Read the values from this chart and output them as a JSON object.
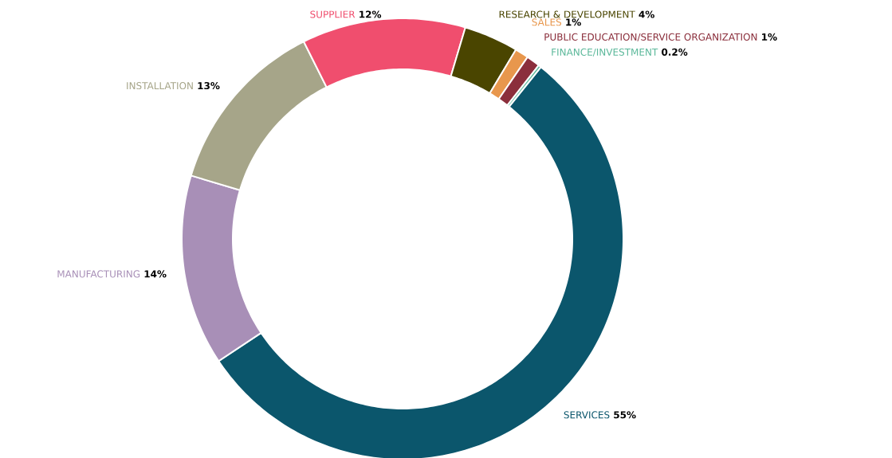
{
  "chart_data": {
    "type": "donut",
    "categories": [
      "SERVICES",
      "MANUFACTURING",
      "INSTALLATION",
      "SUPPLIER",
      "RESEARCH & DEVELOPMENT",
      "SALES",
      "PUBLIC EDUCATION/SERVICE ORGANIZATION",
      "FINANCE/INVESTMENT"
    ],
    "values": [
      55,
      14,
      13,
      12,
      4,
      1,
      1,
      0.2
    ],
    "value_labels": [
      "55%",
      "14%",
      "13%",
      "12%",
      "4%",
      "1%",
      "1%",
      "0.2%"
    ],
    "colors": [
      "#0b566c",
      "#a88fb7",
      "#a6a589",
      "#f04e6e",
      "#4a4500",
      "#e8974d",
      "#8b2f3c",
      "#5bb89a"
    ]
  }
}
